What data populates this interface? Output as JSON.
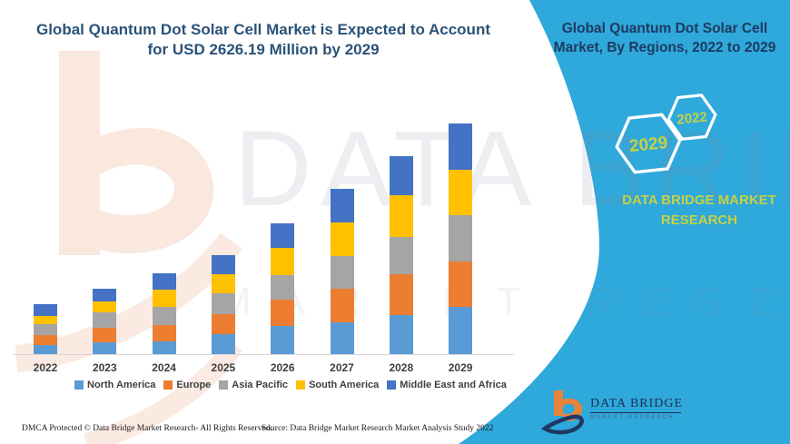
{
  "header": {
    "left_title": "Global Quantum Dot Solar Cell Market is Expected to Account for USD 2626.19 Million by 2029",
    "right_title_line1": "Global Quantum Dot Solar Cell",
    "right_title_line2": "Market, By Regions, 2022 to 2029"
  },
  "right_panel": {
    "accent_color": "#2FA8DB",
    "hexagon_labels": {
      "large": "2029",
      "small": "2022"
    },
    "brand_line1": "DATA BRIDGE MARKET",
    "brand_line2": "RESEARCH",
    "brand_text_color": "#C5D145"
  },
  "watermark": {
    "line1": "DATA BRIDGE",
    "line2": "MARKET RESEARCH"
  },
  "logo": {
    "title": "DATA BRIDGE",
    "subtitle": "MARKET RESEARCH"
  },
  "footer": {
    "dmca": "DMCA Protected © Data Bridge Market Research- All Rights Reserved.",
    "source": "Source: Data Bridge Market Research Market Analysis Study 2022"
  },
  "chart_data": {
    "type": "bar",
    "stacked": true,
    "title": "Global Quantum Dot Solar Cell Market, By Regions, 2022 to 2029",
    "value_unit": "USD Million",
    "grid": false,
    "legend_position": "bottom",
    "categories": [
      "2022",
      "2023",
      "2024",
      "2025",
      "2026",
      "2027",
      "2028",
      "2029"
    ],
    "series": [
      {
        "name": "North America",
        "color": "#5B9BD5",
        "values": [
          103,
          134,
          143,
          226,
          318,
          360,
          444,
          536
        ]
      },
      {
        "name": "Europe",
        "color": "#ED7D31",
        "values": [
          112,
          164,
          185,
          228,
          298,
          382,
          464,
          517
        ]
      },
      {
        "name": "Asia Pacific",
        "color": "#A5A5A5",
        "values": [
          122,
          174,
          206,
          236,
          282,
          372,
          424,
          528
        ]
      },
      {
        "name": "South America",
        "color": "#FFC000",
        "values": [
          100,
          126,
          196,
          216,
          308,
          383,
          476,
          514
        ]
      },
      {
        "name": "Middle East and Africa",
        "color": "#4472C4",
        "values": [
          133,
          142,
          195,
          219,
          284,
          383,
          447,
          531.19
        ]
      }
    ],
    "totals": [
      570,
      740,
      925,
      1125,
      1490,
      1880,
      2255,
      2626.19
    ],
    "highlight_total_2029": 2626.19
  }
}
